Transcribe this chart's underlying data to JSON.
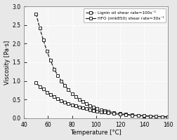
{
  "title": "",
  "xlabel": "Temperature [°C]",
  "ylabel": "Viscosity [Pa·s]",
  "xlim": [
    40,
    160
  ],
  "ylim": [
    0,
    3
  ],
  "yticks": [
    0,
    0.5,
    1.0,
    1.5,
    2.0,
    2.5,
    3.0
  ],
  "xticks": [
    40,
    60,
    80,
    100,
    120,
    140,
    160
  ],
  "legend1": "Lignin oil shear rate=100s⁻¹",
  "legend2": "HFO (rmk850) shear rate=30s⁻¹",
  "lignin_T": [
    50,
    53,
    56,
    59,
    62,
    65,
    68,
    71,
    74,
    77,
    80,
    83,
    86,
    89,
    92,
    95,
    98,
    101,
    104,
    107,
    110,
    115,
    120,
    125,
    130,
    135,
    140,
    145,
    150,
    155,
    160
  ],
  "lignin_V": [
    2.8,
    2.42,
    2.1,
    1.8,
    1.55,
    1.32,
    1.15,
    1.0,
    0.88,
    0.76,
    0.66,
    0.58,
    0.5,
    0.44,
    0.39,
    0.34,
    0.3,
    0.26,
    0.23,
    0.2,
    0.18,
    0.15,
    0.12,
    0.1,
    0.085,
    0.072,
    0.06,
    0.05,
    0.042,
    0.035,
    0.03
  ],
  "hfo_T": [
    50,
    53,
    56,
    59,
    62,
    65,
    68,
    71,
    74,
    77,
    80,
    83,
    86,
    89,
    92,
    95,
    98,
    101,
    104,
    107,
    110,
    115,
    120,
    125,
    130,
    135,
    140,
    145,
    150,
    155,
    160
  ],
  "hfo_V": [
    0.95,
    0.85,
    0.78,
    0.7,
    0.63,
    0.58,
    0.52,
    0.47,
    0.43,
    0.39,
    0.36,
    0.33,
    0.3,
    0.27,
    0.25,
    0.23,
    0.21,
    0.19,
    0.17,
    0.16,
    0.14,
    0.12,
    0.1,
    0.09,
    0.08,
    0.07,
    0.065,
    0.055,
    0.048,
    0.042,
    0.036
  ],
  "line_color": "#222222",
  "bg_color": "#e8e8e8",
  "grid_color": "#ffffff",
  "plot_bg": "#f5f5f5"
}
